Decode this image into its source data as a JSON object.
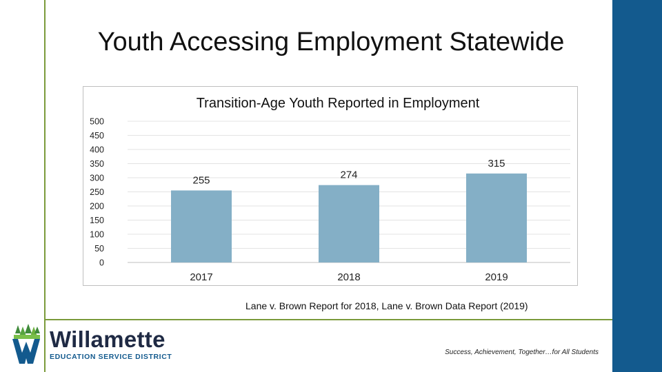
{
  "slide": {
    "title": "Youth Accessing Employment Statewide",
    "source": "Lane v. Brown Report for 2018, Lane v. Brown Data Report  (2019)",
    "tagline": "Success, Achievement, Together…for All Students"
  },
  "logo": {
    "name": "Willamette",
    "subtitle": "EDUCATION SERVICE DISTRICT"
  },
  "colors": {
    "accent_green": "#7a9a3a",
    "sidebar_blue": "#135a8e",
    "bar_fill": "#84afc6"
  },
  "chart_data": {
    "type": "bar",
    "title": "Transition-Age Youth Reported in Employment",
    "categories": [
      "2017",
      "2018",
      "2019"
    ],
    "values": [
      255,
      274,
      315
    ],
    "xlabel": "",
    "ylabel": "",
    "ylim": [
      0,
      500
    ],
    "yticks": [
      0,
      50,
      100,
      150,
      200,
      250,
      300,
      350,
      400,
      450,
      500
    ],
    "grid": true,
    "legend": "none"
  }
}
